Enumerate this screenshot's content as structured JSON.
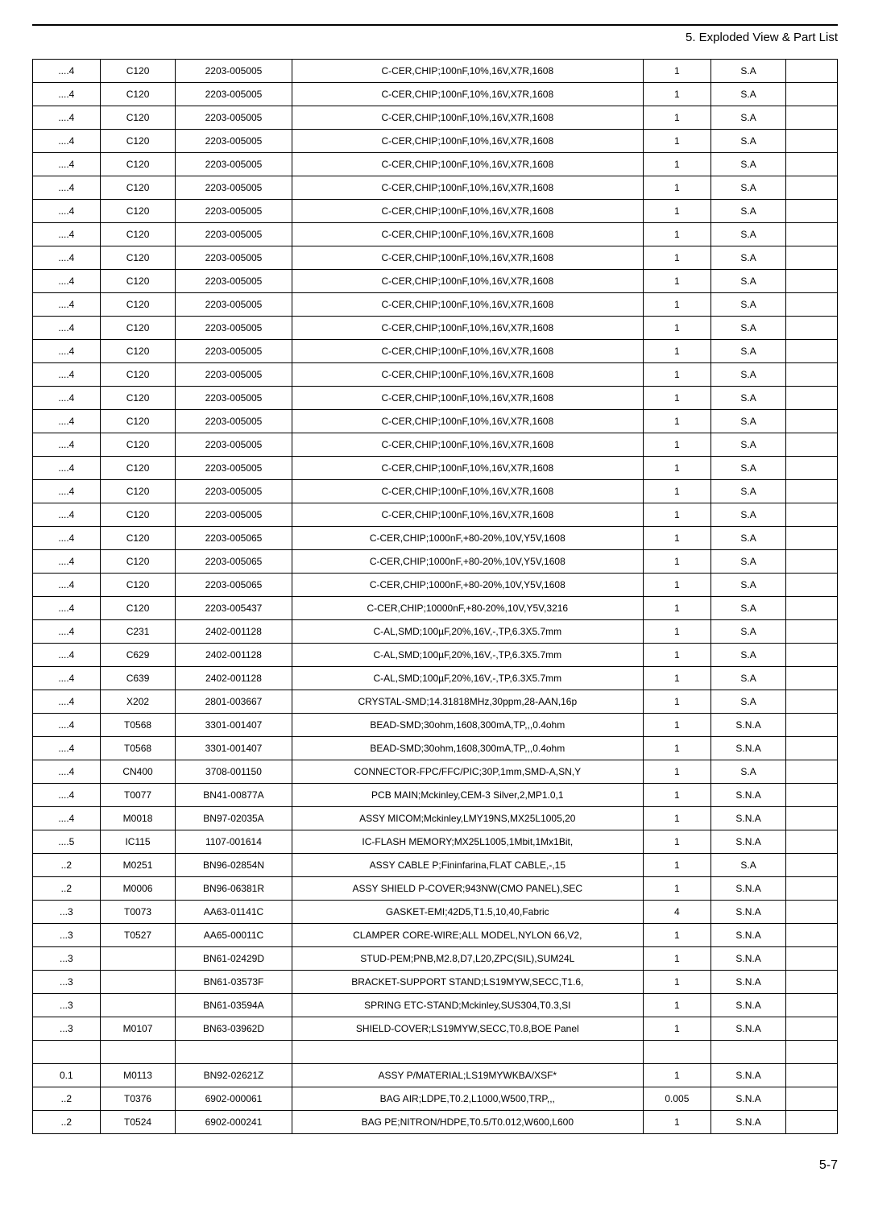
{
  "header": {
    "title": "5. Exploded View & Part List"
  },
  "table": {
    "columns": [
      "level",
      "loc",
      "partno",
      "desc",
      "qty",
      "sa",
      "blank"
    ],
    "col_classes": [
      "c1",
      "c2",
      "c3",
      "c4",
      "c5",
      "c6",
      "c7"
    ],
    "rows": [
      [
        "....4",
        "C120",
        "2203-005005",
        "C-CER,CHIP;100nF,10%,16V,X7R,1608",
        "1",
        "S.A",
        ""
      ],
      [
        "....4",
        "C120",
        "2203-005005",
        "C-CER,CHIP;100nF,10%,16V,X7R,1608",
        "1",
        "S.A",
        ""
      ],
      [
        "....4",
        "C120",
        "2203-005005",
        "C-CER,CHIP;100nF,10%,16V,X7R,1608",
        "1",
        "S.A",
        ""
      ],
      [
        "....4",
        "C120",
        "2203-005005",
        "C-CER,CHIP;100nF,10%,16V,X7R,1608",
        "1",
        "S.A",
        ""
      ],
      [
        "....4",
        "C120",
        "2203-005005",
        "C-CER,CHIP;100nF,10%,16V,X7R,1608",
        "1",
        "S.A",
        ""
      ],
      [
        "....4",
        "C120",
        "2203-005005",
        "C-CER,CHIP;100nF,10%,16V,X7R,1608",
        "1",
        "S.A",
        ""
      ],
      [
        "....4",
        "C120",
        "2203-005005",
        "C-CER,CHIP;100nF,10%,16V,X7R,1608",
        "1",
        "S.A",
        ""
      ],
      [
        "....4",
        "C120",
        "2203-005005",
        "C-CER,CHIP;100nF,10%,16V,X7R,1608",
        "1",
        "S.A",
        ""
      ],
      [
        "....4",
        "C120",
        "2203-005005",
        "C-CER,CHIP;100nF,10%,16V,X7R,1608",
        "1",
        "S.A",
        ""
      ],
      [
        "....4",
        "C120",
        "2203-005005",
        "C-CER,CHIP;100nF,10%,16V,X7R,1608",
        "1",
        "S.A",
        ""
      ],
      [
        "....4",
        "C120",
        "2203-005005",
        "C-CER,CHIP;100nF,10%,16V,X7R,1608",
        "1",
        "S.A",
        ""
      ],
      [
        "....4",
        "C120",
        "2203-005005",
        "C-CER,CHIP;100nF,10%,16V,X7R,1608",
        "1",
        "S.A",
        ""
      ],
      [
        "....4",
        "C120",
        "2203-005005",
        "C-CER,CHIP;100nF,10%,16V,X7R,1608",
        "1",
        "S.A",
        ""
      ],
      [
        "....4",
        "C120",
        "2203-005005",
        "C-CER,CHIP;100nF,10%,16V,X7R,1608",
        "1",
        "S.A",
        ""
      ],
      [
        "....4",
        "C120",
        "2203-005005",
        "C-CER,CHIP;100nF,10%,16V,X7R,1608",
        "1",
        "S.A",
        ""
      ],
      [
        "....4",
        "C120",
        "2203-005005",
        "C-CER,CHIP;100nF,10%,16V,X7R,1608",
        "1",
        "S.A",
        ""
      ],
      [
        "....4",
        "C120",
        "2203-005005",
        "C-CER,CHIP;100nF,10%,16V,X7R,1608",
        "1",
        "S.A",
        ""
      ],
      [
        "....4",
        "C120",
        "2203-005005",
        "C-CER,CHIP;100nF,10%,16V,X7R,1608",
        "1",
        "S.A",
        ""
      ],
      [
        "....4",
        "C120",
        "2203-005005",
        "C-CER,CHIP;100nF,10%,16V,X7R,1608",
        "1",
        "S.A",
        ""
      ],
      [
        "....4",
        "C120",
        "2203-005005",
        "C-CER,CHIP;100nF,10%,16V,X7R,1608",
        "1",
        "S.A",
        ""
      ],
      [
        "....4",
        "C120",
        "2203-005065",
        "C-CER,CHIP;1000nF,+80-20%,10V,Y5V,1608",
        "1",
        "S.A",
        ""
      ],
      [
        "....4",
        "C120",
        "2203-005065",
        "C-CER,CHIP;1000nF,+80-20%,10V,Y5V,1608",
        "1",
        "S.A",
        ""
      ],
      [
        "....4",
        "C120",
        "2203-005065",
        "C-CER,CHIP;1000nF,+80-20%,10V,Y5V,1608",
        "1",
        "S.A",
        ""
      ],
      [
        "....4",
        "C120",
        "2203-005437",
        "C-CER,CHIP;10000nF,+80-20%,10V,Y5V,3216",
        "1",
        "S.A",
        ""
      ],
      [
        "....4",
        "C231",
        "2402-001128",
        "C-AL,SMD;100µF,20%,16V,-,TP,6.3X5.7mm",
        "1",
        "S.A",
        ""
      ],
      [
        "....4",
        "C629",
        "2402-001128",
        "C-AL,SMD;100µF,20%,16V,-,TP,6.3X5.7mm",
        "1",
        "S.A",
        ""
      ],
      [
        "....4",
        "C639",
        "2402-001128",
        "C-AL,SMD;100µF,20%,16V,-,TP,6.3X5.7mm",
        "1",
        "S.A",
        ""
      ],
      [
        "....4",
        "X202",
        "2801-003667",
        "CRYSTAL-SMD;14.31818MHz,30ppm,28-AAN,16p",
        "1",
        "S.A",
        ""
      ],
      [
        "....4",
        "T0568",
        "3301-001407",
        "BEAD-SMD;30ohm,1608,300mA,TP,,,0.4ohm",
        "1",
        "S.N.A",
        ""
      ],
      [
        "....4",
        "T0568",
        "3301-001407",
        "BEAD-SMD;30ohm,1608,300mA,TP,,,0.4ohm",
        "1",
        "S.N.A",
        ""
      ],
      [
        "....4",
        "CN400",
        "3708-001150",
        "CONNECTOR-FPC/FFC/PIC;30P,1mm,SMD-A,SN,Y",
        "1",
        "S.A",
        ""
      ],
      [
        "....4",
        "T0077",
        "BN41-00877A",
        "PCB MAIN;Mckinley,CEM-3 Silver,2,MP1.0,1",
        "1",
        "S.N.A",
        ""
      ],
      [
        "....4",
        "M0018",
        "BN97-02035A",
        "ASSY MICOM;Mckinley,LMY19NS,MX25L1005,20",
        "1",
        "S.N.A",
        ""
      ],
      [
        "....5",
        "IC115",
        "1107-001614",
        "IC-FLASH MEMORY;MX25L1005,1Mbit,1Mx1Bit,",
        "1",
        "S.N.A",
        ""
      ],
      [
        "..2",
        "M0251",
        "BN96-02854N",
        "ASSY CABLE P;Fininfarina,FLAT CABLE,-,15",
        "1",
        "S.A",
        ""
      ],
      [
        "..2",
        "M0006",
        "BN96-06381R",
        "ASSY SHIELD P-COVER;943NW(CMO PANEL),SEC",
        "1",
        "S.N.A",
        ""
      ],
      [
        "...3",
        "T0073",
        "AA63-01141C",
        "GASKET-EMI;42D5,T1.5,10,40,Fabric",
        "4",
        "S.N.A",
        ""
      ],
      [
        "...3",
        "T0527",
        "AA65-00011C",
        "CLAMPER CORE-WIRE;ALL MODEL,NYLON 66,V2,",
        "1",
        "S.N.A",
        ""
      ],
      [
        "...3",
        "",
        "BN61-02429D",
        "STUD-PEM;PNB,M2.8,D7,L20,ZPC(SIL),SUM24L",
        "1",
        "S.N.A",
        ""
      ],
      [
        "...3",
        "",
        "BN61-03573F",
        "BRACKET-SUPPORT STAND;LS19MYW,SECC,T1.6,",
        "1",
        "S.N.A",
        ""
      ],
      [
        "...3",
        "",
        "BN61-03594A",
        "SPRING ETC-STAND;Mckinley,SUS304,T0.3,SI",
        "1",
        "S.N.A",
        ""
      ],
      [
        "...3",
        "M0107",
        "BN63-03962D",
        "SHIELD-COVER;LS19MYW,SECC,T0.8,BOE Panel",
        "1",
        "S.N.A",
        ""
      ],
      [
        "",
        "",
        "",
        "",
        "",
        "",
        ""
      ],
      [
        "0.1",
        "M0113",
        "BN92-02621Z",
        "ASSY P/MATERIAL;LS19MYWKBA/XSF*",
        "1",
        "S.N.A",
        ""
      ],
      [
        "..2",
        "T0376",
        "6902-000061",
        "BAG AIR;LDPE,T0.2,L1000,W500,TRP,,,",
        "0.005",
        "S.N.A",
        ""
      ],
      [
        "..2",
        "T0524",
        "6902-000241",
        "BAG PE;NITRON/HDPE,T0.5/T0.012,W600,L600",
        "1",
        "S.N.A",
        ""
      ]
    ]
  },
  "footer": {
    "page": "5-7"
  }
}
